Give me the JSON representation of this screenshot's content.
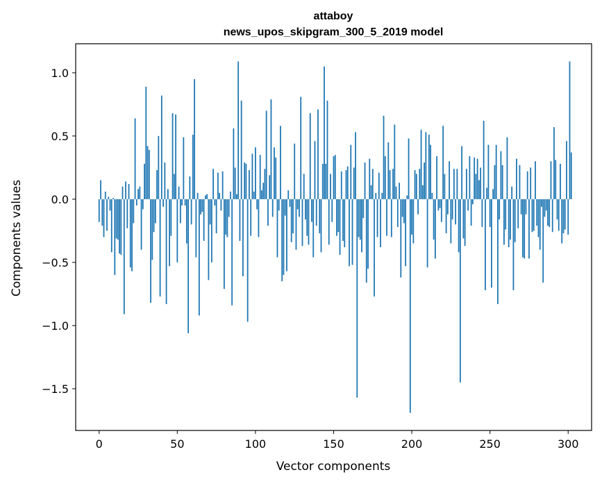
{
  "chart_data": {
    "type": "bar",
    "title": "attaboy",
    "subtitle": "news_upos_skipgram_300_5_2019 model",
    "xlabel": "Vector components",
    "ylabel": "Components values",
    "xlim": [
      -15,
      315
    ],
    "ylim": [
      -1.83,
      1.23
    ],
    "x_ticks": [
      0,
      50,
      100,
      150,
      200,
      250,
      300
    ],
    "y_ticks": [
      1.0,
      0.5,
      0.0,
      -0.5,
      -1.0,
      -1.5
    ],
    "y_tick_labels": [
      "1.0",
      "0.5",
      "0.0",
      "−0.5",
      "−1.0",
      "−1.5"
    ],
    "bar_color": "#1f77b4",
    "grid": false,
    "values": [
      -0.18,
      0.15,
      -0.21,
      -0.3,
      0.06,
      -0.25,
      0.02,
      -0.09,
      -0.42,
      0.01,
      -0.6,
      -0.31,
      -0.32,
      -0.43,
      -0.44,
      0.1,
      -0.91,
      0.14,
      -0.23,
      0.12,
      -0.54,
      -0.57,
      -0.19,
      0.64,
      -0.05,
      0.08,
      0.1,
      -0.4,
      -0.08,
      0.28,
      0.89,
      0.42,
      0.39,
      -0.82,
      -0.48,
      -0.26,
      -0.19,
      0.23,
      0.5,
      -0.77,
      0.82,
      -0.06,
      0.29,
      -0.83,
      0.08,
      -0.53,
      -0.29,
      0.68,
      0.2,
      0.67,
      -0.5,
      0.1,
      -0.19,
      -0.05,
      0.49,
      -0.05,
      -0.35,
      -1.06,
      0.18,
      -0.2,
      0.51,
      0.95,
      -0.46,
      0.05,
      -0.92,
      -0.12,
      -0.1,
      -0.33,
      0.03,
      0.04,
      -0.64,
      -0.2,
      -0.5,
      0.24,
      -0.05,
      -0.27,
      0.21,
      0.05,
      -0.09,
      0.22,
      -0.71,
      -0.28,
      -0.3,
      -0.14,
      0.06,
      -0.84,
      0.56,
      0.25,
      0.04,
      1.09,
      -0.33,
      0.78,
      -0.61,
      0.29,
      0.28,
      -0.97,
      0.23,
      -0.29,
      0.36,
      0.06,
      0.41,
      -0.08,
      -0.3,
      0.35,
      0.07,
      0.13,
      0.24,
      0.7,
      -0.21,
      0.19,
      0.79,
      -0.14,
      0.41,
      0.33,
      -0.46,
      -0.09,
      0.58,
      -0.65,
      -0.6,
      -0.13,
      -0.57,
      0.07,
      -0.06,
      -0.34,
      -0.27,
      0.44,
      -0.4,
      -0.08,
      -0.14,
      0.81,
      -0.37,
      0.2,
      -0.16,
      -0.29,
      -0.36,
      0.68,
      -0.18,
      -0.46,
      0.46,
      -0.21,
      0.71,
      -0.27,
      -0.42,
      0.28,
      1.05,
      0.28,
      0.78,
      -0.36,
      0.2,
      -0.18,
      0.34,
      0.35,
      -0.29,
      -0.26,
      -0.44,
      0.22,
      -0.33,
      -0.38,
      0.23,
      0.26,
      -0.53,
      0.43,
      -0.52,
      0.25,
      0.53,
      -1.57,
      -0.3,
      -0.32,
      -0.42,
      -0.15,
      0.29,
      -0.66,
      -0.55,
      0.32,
      0.11,
      0.24,
      -0.77,
      0.05,
      -0.3,
      0.21,
      -0.38,
      0.05,
      0.66,
      0.34,
      -0.29,
      0.45,
      0.23,
      -0.3,
      0.24,
      0.59,
      0.1,
      -0.22,
      0.13,
      -0.62,
      -0.14,
      -0.19,
      -0.53,
      0.03,
      0.48,
      -1.69,
      -0.28,
      -0.35,
      0.23,
      0.2,
      -0.12,
      0.24,
      0.55,
      0.11,
      0.29,
      0.53,
      -0.54,
      0.51,
      0.43,
      0.05,
      -0.32,
      -0.47,
      0.34,
      -0.09,
      -0.07,
      -0.18,
      0.58,
      0.2,
      -0.27,
      -0.12,
      0.3,
      -0.35,
      -0.16,
      0.24,
      -0.2,
      0.24,
      -0.42,
      -1.45,
      0.42,
      -0.31,
      -0.37,
      0.24,
      -0.09,
      0.34,
      -0.21,
      -0.04,
      0.33,
      0.2,
      0.32,
      0.15,
      0.25,
      -0.22,
      0.62,
      -0.72,
      0.09,
      0.43,
      -0.22,
      -0.7,
      0.08,
      0.27,
      0.43,
      -0.83,
      -0.16,
      0.38,
      0.27,
      -0.36,
      -0.24,
      0.49,
      -0.38,
      -0.32,
      0.1,
      -0.72,
      -0.34,
      0.32,
      -0.23,
      0.27,
      -0.12,
      -0.46,
      -0.47,
      -0.12,
      0.22,
      -0.47,
      0.25,
      -0.26,
      -0.25,
      0.3,
      -0.21,
      -0.3,
      -0.4,
      -0.06,
      -0.66,
      -0.14,
      -0.09,
      -0.21,
      -0.22,
      0.3,
      -0.26,
      0.57,
      0.31,
      -0.16,
      -0.25,
      0.28,
      -0.35,
      -0.27,
      -0.24,
      0.46,
      -0.28,
      1.09,
      0.37
    ]
  }
}
